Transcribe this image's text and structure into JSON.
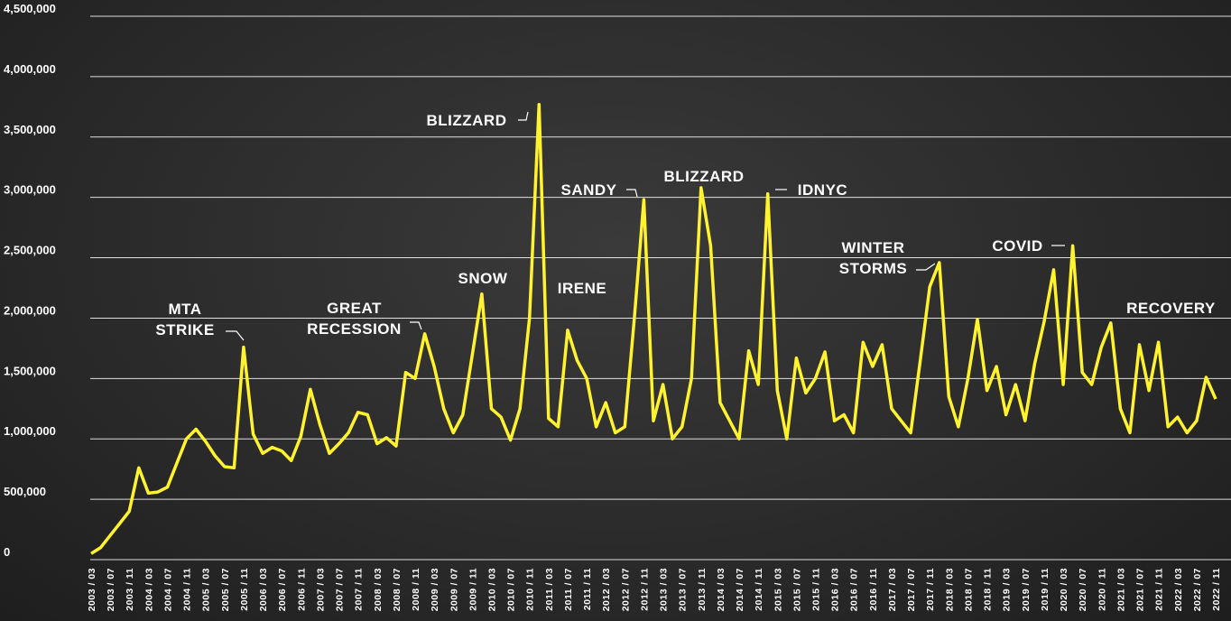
{
  "chart_data": {
    "type": "line",
    "categories": [
      "2003 / 03",
      null,
      "2003 / 07",
      null,
      "2003 / 11",
      null,
      "2004 / 03",
      null,
      "2004 / 07",
      null,
      "2004 / 11",
      null,
      "2005 / 03",
      null,
      "2005 / 07",
      null,
      "2005 / 11",
      null,
      "2006 / 03",
      null,
      "2006 / 07",
      null,
      "2006 / 11",
      null,
      "2007 / 03",
      null,
      "2007 / 07",
      null,
      "2007 / 11",
      null,
      "2008 / 03",
      null,
      "2008 / 07",
      null,
      "2008 / 11",
      null,
      "2009 / 03",
      null,
      "2009 / 07",
      null,
      "2009 / 11",
      null,
      "2010 / 03",
      null,
      "2010 / 07",
      null,
      "2010 / 11",
      null,
      "2011 / 03",
      null,
      "2011 / 07",
      null,
      "2011 / 11",
      null,
      "2012 / 03",
      null,
      "2012 / 07",
      null,
      "2012 / 11",
      null,
      "2013 / 03",
      null,
      "2013 / 07",
      null,
      "2013 / 11",
      null,
      "2014 / 03",
      null,
      "2014 / 07",
      null,
      "2014 / 11",
      null,
      "2015 / 03",
      null,
      "2015 / 07",
      null,
      "2015 / 11",
      null,
      "2016 / 03",
      null,
      "2016 / 07",
      null,
      "2016 / 11",
      null,
      "2017 / 03",
      null,
      "2017 / 07",
      null,
      "2017 / 11",
      null,
      "2018 / 03",
      null,
      "2018 / 07",
      null,
      "2018 / 11",
      null,
      "2019 / 03",
      null,
      "2019 / 07",
      null,
      "2019 / 11",
      null,
      "2020 / 03",
      null,
      "2020 / 07",
      null,
      "2020 / 11",
      null,
      "2021 / 03",
      null,
      "2021 / 07",
      null,
      "2021 / 11",
      null,
      "2022 / 03",
      null,
      "2022 / 07",
      null,
      "2022 / 11"
    ],
    "values": [
      50000,
      100000,
      200000,
      300000,
      400000,
      760000,
      550000,
      560000,
      600000,
      800000,
      1000000,
      1080000,
      980000,
      860000,
      770000,
      760000,
      1760000,
      1040000,
      880000,
      930000,
      900000,
      820000,
      1020000,
      1410000,
      1120000,
      880000,
      960000,
      1050000,
      1220000,
      1200000,
      960000,
      1010000,
      940000,
      1550000,
      1500000,
      1870000,
      1600000,
      1250000,
      1050000,
      1200000,
      1700000,
      2200000,
      1250000,
      1180000,
      990000,
      1250000,
      2000000,
      3770000,
      1170000,
      1100000,
      1900000,
      1650000,
      1500000,
      1100000,
      1300000,
      1050000,
      1100000,
      2000000,
      2980000,
      1150000,
      1450000,
      1000000,
      1100000,
      1500000,
      3080000,
      2600000,
      1300000,
      1150000,
      1000000,
      1730000,
      1450000,
      3030000,
      1400000,
      1000000,
      1670000,
      1380000,
      1500000,
      1720000,
      1150000,
      1200000,
      1050000,
      1800000,
      1600000,
      1780000,
      1250000,
      1150000,
      1050000,
      1650000,
      2260000,
      2460000,
      1350000,
      1100000,
      1500000,
      1990000,
      1400000,
      1600000,
      1200000,
      1450000,
      1150000,
      1620000,
      1970000,
      2400000,
      1450000,
      2600000,
      1550000,
      1450000,
      1760000,
      1960000,
      1250000,
      1050000,
      1780000,
      1400000,
      1800000,
      1100000,
      1180000,
      1050000,
      1150000,
      1510000,
      1330000
    ],
    "color": "#fff22e",
    "ylim": [
      0,
      4500000
    ],
    "yticks": [
      0,
      {
        "value": 500000,
        "label": "500,000"
      },
      {
        "value": 1000000,
        "label": "1,000,000"
      },
      {
        "value": 1500000,
        "label": "1,500,000"
      },
      {
        "value": 2000000,
        "label": "2,000,000"
      },
      {
        "value": 2500000,
        "label": "2,500,000"
      },
      {
        "value": 3000000,
        "label": "3,000,000"
      },
      {
        "value": 3500000,
        "label": "3,500,000"
      },
      {
        "value": 4000000,
        "label": "4,000,000"
      },
      {
        "value": 4500000,
        "label": "4,500,000"
      }
    ],
    "grid": true,
    "annotations": [
      "MTA STRIKE",
      "GREAT RECESSION",
      "SNOW",
      "BLIZZARD",
      "IRENE",
      "SANDY",
      "BLIZZARD",
      "IDNYC",
      "WINTER STORMS",
      "COVID",
      "RECOVERY"
    ]
  }
}
